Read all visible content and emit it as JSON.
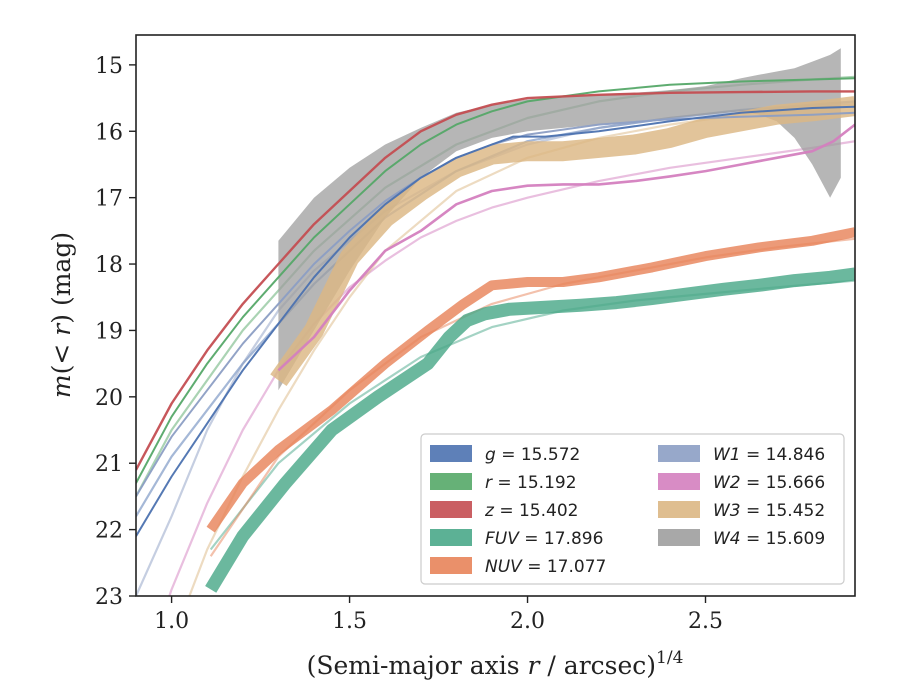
{
  "chart_data": {
    "type": "line",
    "xlabel": "(Semi-major axis r / arcsec)^1/4",
    "ylabel": "m(< r) (mag)",
    "xlim": [
      0.9,
      2.92
    ],
    "ylim": [
      23,
      14.55
    ],
    "y_inverted": true,
    "grid": false,
    "legend_position": "lower-right",
    "x_ticks": [
      1.0,
      1.5,
      2.0,
      2.5
    ],
    "x_tick_labels": [
      "1.0",
      "1.5",
      "2.0",
      "2.5"
    ],
    "y_ticks": [
      15,
      16,
      17,
      18,
      19,
      20,
      21,
      22,
      23
    ],
    "y_tick_labels": [
      "15",
      "16",
      "17",
      "18",
      "19",
      "20",
      "21",
      "22",
      "23"
    ],
    "series": [
      {
        "name": "g = 15.572",
        "key": "g",
        "color": "#4c72b0",
        "band": false,
        "width": 2,
        "x": [
          0.9,
          1.0,
          1.1,
          1.2,
          1.3,
          1.4,
          1.5,
          1.6,
          1.7,
          1.8,
          1.9,
          1.96,
          2.05,
          2.2,
          2.4,
          2.6,
          2.8,
          2.92
        ],
        "y": [
          22.1,
          21.2,
          20.4,
          19.6,
          18.9,
          18.2,
          17.6,
          17.1,
          16.7,
          16.4,
          16.2,
          16.08,
          16.08,
          16.0,
          15.85,
          15.72,
          15.65,
          15.63
        ],
        "model_x": [
          0.9,
          1.0,
          1.2,
          1.4,
          1.6,
          1.8,
          2.0,
          2.2,
          2.4,
          2.6,
          2.8,
          2.92
        ],
        "model_y": [
          21.8,
          20.9,
          19.5,
          18.3,
          17.3,
          16.6,
          16.15,
          15.95,
          15.8,
          15.68,
          15.6,
          15.55
        ]
      },
      {
        "name": "r = 15.192",
        "key": "r",
        "color": "#55a868",
        "band": false,
        "width": 2,
        "x": [
          0.9,
          1.0,
          1.1,
          1.2,
          1.3,
          1.4,
          1.5,
          1.6,
          1.7,
          1.8,
          1.9,
          2.0,
          2.2,
          2.4,
          2.6,
          2.8,
          2.92
        ],
        "y": [
          21.3,
          20.3,
          19.5,
          18.8,
          18.2,
          17.6,
          17.1,
          16.6,
          16.2,
          15.9,
          15.7,
          15.55,
          15.4,
          15.3,
          15.25,
          15.22,
          15.2
        ],
        "model_x": [
          0.9,
          1.0,
          1.2,
          1.4,
          1.6,
          1.8,
          2.0,
          2.2,
          2.4,
          2.6,
          2.8,
          2.92
        ],
        "model_y": [
          21.5,
          20.5,
          19.0,
          17.8,
          16.85,
          16.2,
          15.8,
          15.55,
          15.4,
          15.3,
          15.22,
          15.18
        ]
      },
      {
        "name": "z = 15.402",
        "key": "z",
        "color": "#c44e52",
        "band": false,
        "width": 2.4,
        "x": [
          0.9,
          1.0,
          1.1,
          1.2,
          1.3,
          1.4,
          1.5,
          1.6,
          1.7,
          1.8,
          1.9,
          2.0,
          2.2,
          2.4,
          2.6,
          2.8,
          2.92
        ],
        "y": [
          21.1,
          20.1,
          19.3,
          18.6,
          18.0,
          17.4,
          16.9,
          16.4,
          16.0,
          15.75,
          15.6,
          15.5,
          15.45,
          15.42,
          15.41,
          15.4,
          15.4
        ],
        "model_x": [],
        "model_y": []
      },
      {
        "name": "FUV = 17.896",
        "key": "FUV",
        "color": "#4aa889",
        "band": true,
        "width": 13,
        "x": [
          1.11,
          1.2,
          1.32,
          1.45,
          1.58,
          1.72,
          1.78,
          1.83,
          1.88,
          1.95,
          2.05,
          2.15,
          2.25,
          2.35,
          2.45,
          2.55,
          2.65,
          2.75,
          2.85,
          2.92
        ],
        "y": [
          22.9,
          22.1,
          21.3,
          20.5,
          20.0,
          19.5,
          19.1,
          18.85,
          18.75,
          18.68,
          18.65,
          18.62,
          18.58,
          18.52,
          18.45,
          18.38,
          18.32,
          18.25,
          18.2,
          18.15
        ],
        "model_x": [
          1.11,
          1.3,
          1.5,
          1.7,
          1.9,
          2.1,
          2.3,
          2.5,
          2.7,
          2.92
        ],
        "model_y": [
          22.3,
          21.0,
          20.1,
          19.4,
          18.95,
          18.7,
          18.55,
          18.45,
          18.35,
          18.25
        ]
      },
      {
        "name": "NUV = 17.077",
        "key": "NUV",
        "color": "#e8845a",
        "band": true,
        "width": 10,
        "x": [
          1.11,
          1.2,
          1.3,
          1.45,
          1.6,
          1.72,
          1.82,
          1.9,
          2.0,
          2.1,
          2.2,
          2.35,
          2.5,
          2.65,
          2.8,
          2.92
        ],
        "y": [
          22.0,
          21.3,
          20.8,
          20.2,
          19.5,
          19.0,
          18.6,
          18.32,
          18.27,
          18.27,
          18.2,
          18.05,
          17.88,
          17.75,
          17.65,
          17.52
        ],
        "model_x": [
          1.11,
          1.3,
          1.5,
          1.7,
          1.9,
          2.1,
          2.3,
          2.5,
          2.7,
          2.92
        ],
        "model_y": [
          22.4,
          20.9,
          19.9,
          19.1,
          18.6,
          18.3,
          18.1,
          17.9,
          17.75,
          17.62
        ]
      },
      {
        "name": "W1 = 14.846",
        "key": "W1",
        "color": "#8c9ec4",
        "band": false,
        "width": 2,
        "x": [
          0.9,
          1.0,
          1.1,
          1.2,
          1.3,
          1.4,
          1.5,
          1.6,
          1.7,
          1.8,
          1.9,
          2.0,
          2.2,
          2.4,
          2.6,
          2.8,
          2.92
        ],
        "y": [
          21.5,
          20.6,
          19.9,
          19.2,
          18.6,
          18.0,
          17.5,
          17.05,
          16.7,
          16.4,
          16.2,
          16.05,
          15.9,
          15.82,
          15.78,
          15.75,
          15.72
        ],
        "model_x": [
          0.9,
          1.0,
          1.1,
          1.2,
          1.3,
          1.4,
          1.6,
          1.8,
          2.0,
          2.2,
          2.4,
          2.6,
          2.8,
          2.92
        ],
        "model_y": [
          23.0,
          21.8,
          20.5,
          19.5,
          18.7,
          18.1,
          17.2,
          16.6,
          16.2,
          15.95,
          15.8,
          15.7,
          15.62,
          15.58
        ]
      },
      {
        "name": "W2 = 15.666",
        "key": "W2",
        "color": "#d47fbf",
        "band": false,
        "width": 2.6,
        "x": [
          1.3,
          1.4,
          1.5,
          1.6,
          1.7,
          1.8,
          1.9,
          2.0,
          2.1,
          2.2,
          2.3,
          2.4,
          2.5,
          2.6,
          2.7,
          2.8,
          2.86,
          2.92
        ],
        "y": [
          19.6,
          19.1,
          18.4,
          17.8,
          17.5,
          17.1,
          16.9,
          16.82,
          16.8,
          16.8,
          16.75,
          16.68,
          16.6,
          16.5,
          16.4,
          16.3,
          16.15,
          15.9
        ],
        "model_x": [
          0.9,
          1.0,
          1.1,
          1.2,
          1.3,
          1.4,
          1.5,
          1.6,
          1.7,
          1.8,
          1.9,
          2.0,
          2.2,
          2.4,
          2.6,
          2.8,
          2.92
        ],
        "model_y": [
          24.5,
          22.9,
          21.6,
          20.5,
          19.6,
          18.9,
          18.35,
          17.95,
          17.6,
          17.35,
          17.15,
          17.0,
          16.75,
          16.55,
          16.4,
          16.25,
          16.15
        ]
      },
      {
        "name": "W3 = 15.452",
        "key": "W3",
        "color": "#dcb784",
        "band": true,
        "width": 20,
        "x": [
          1.3,
          1.4,
          1.5,
          1.6,
          1.7,
          1.8,
          1.9,
          2.0,
          2.1,
          2.2,
          2.3,
          2.4,
          2.5,
          2.6,
          2.7,
          2.8,
          2.92
        ],
        "y": [
          19.75,
          19.0,
          17.9,
          17.3,
          16.9,
          16.55,
          16.35,
          16.3,
          16.3,
          16.25,
          16.2,
          16.1,
          15.95,
          15.85,
          15.75,
          15.7,
          15.62
        ],
        "model_x": [
          1.05,
          1.1,
          1.2,
          1.3,
          1.4,
          1.5,
          1.6,
          1.8,
          2.0,
          2.2,
          2.4,
          2.6,
          2.8,
          2.92
        ],
        "model_y": [
          23.0,
          22.3,
          21.2,
          20.2,
          19.3,
          18.5,
          17.8,
          16.9,
          16.4,
          16.1,
          15.9,
          15.75,
          15.65,
          15.6
        ]
      },
      {
        "name": "W4 = 15.609",
        "key": "W4",
        "color": "#9e9e9e",
        "band": true,
        "x": [
          1.3,
          1.4,
          1.5,
          1.6,
          1.7,
          1.8,
          1.9,
          2.0,
          2.1,
          2.2,
          2.3,
          2.4,
          2.5,
          2.6,
          2.65,
          2.7,
          2.75,
          2.8,
          2.85,
          2.88
        ],
        "y_low": [
          17.65,
          17.0,
          16.55,
          16.2,
          15.95,
          15.72,
          15.6,
          15.52,
          15.48,
          15.45,
          15.42,
          15.38,
          15.32,
          15.2,
          15.15,
          15.1,
          15.05,
          14.95,
          14.85,
          14.75
        ],
        "y_high": [
          19.9,
          19.0,
          18.1,
          17.3,
          16.7,
          16.3,
          16.1,
          16.0,
          15.95,
          15.9,
          15.85,
          15.8,
          15.75,
          15.7,
          15.75,
          15.85,
          16.1,
          16.5,
          17.0,
          16.7
        ],
        "model_x": [],
        "model_y": []
      }
    ],
    "legend": {
      "col1": [
        {
          "symbol": "g",
          "value": "15.572",
          "key": "g"
        },
        {
          "symbol": "r",
          "value": "15.192",
          "key": "r"
        },
        {
          "symbol": "z",
          "value": "15.402",
          "key": "z"
        },
        {
          "symbol": "FUV",
          "value": "17.896",
          "key": "FUV"
        },
        {
          "symbol": "NUV",
          "value": "17.077",
          "key": "NUV"
        }
      ],
      "col2": [
        {
          "symbol": "W1",
          "value": "14.846",
          "key": "W1"
        },
        {
          "symbol": "W2",
          "value": "15.666",
          "key": "W2"
        },
        {
          "symbol": "W3",
          "value": "15.452",
          "key": "W3"
        },
        {
          "symbol": "W4",
          "value": "15.609",
          "key": "W4"
        }
      ]
    }
  }
}
